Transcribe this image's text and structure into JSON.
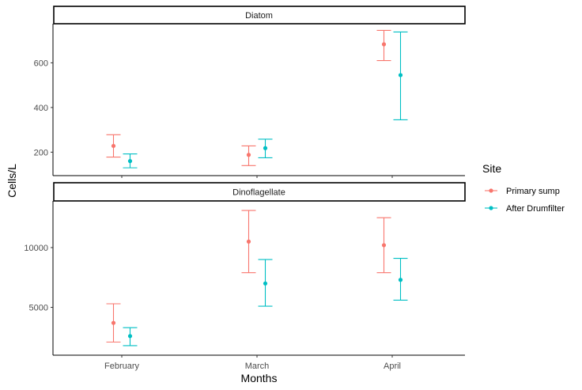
{
  "chart_data": {
    "type": "scatter",
    "subtype": "faceted point with error bars",
    "xlabel": "Months",
    "ylabel": "Cells/L",
    "categories": [
      "February",
      "March",
      "April"
    ],
    "legend": {
      "title": "Site",
      "position": "right",
      "entries": [
        "Primary sump",
        "After Drumfilter"
      ]
    },
    "series_colors": {
      "Primary sump": "#F8766D",
      "After Drumfilter": "#00BFC4"
    },
    "grid": false,
    "panels": [
      {
        "strip": "Diatom",
        "ylim": [
          95,
          775
        ],
        "yticks": [
          200,
          400,
          600
        ],
        "series": [
          {
            "name": "Primary sump",
            "values": [
              228,
              188,
              683
            ],
            "lower": [
              178,
              140,
              610
            ],
            "upper": [
              278,
              228,
              745
            ]
          },
          {
            "name": "After Drumfilter",
            "values": [
              160,
              218,
              545
            ],
            "lower": [
              130,
              175,
              345
            ],
            "upper": [
              192,
              258,
              738
            ]
          }
        ]
      },
      {
        "strip": "Dinoflagellate",
        "ylim": [
          1000,
          13900
        ],
        "yticks": [
          5000,
          10000
        ],
        "series": [
          {
            "name": "Primary sump",
            "values": [
              3700,
              10500,
              10200
            ],
            "lower": [
              2100,
              7900,
              7900
            ],
            "upper": [
              5300,
              13100,
              12500
            ]
          },
          {
            "name": "After Drumfilter",
            "values": [
              2600,
              7000,
              7300
            ],
            "lower": [
              1800,
              5100,
              5600
            ],
            "upper": [
              3300,
              9000,
              9100
            ]
          }
        ]
      }
    ]
  }
}
